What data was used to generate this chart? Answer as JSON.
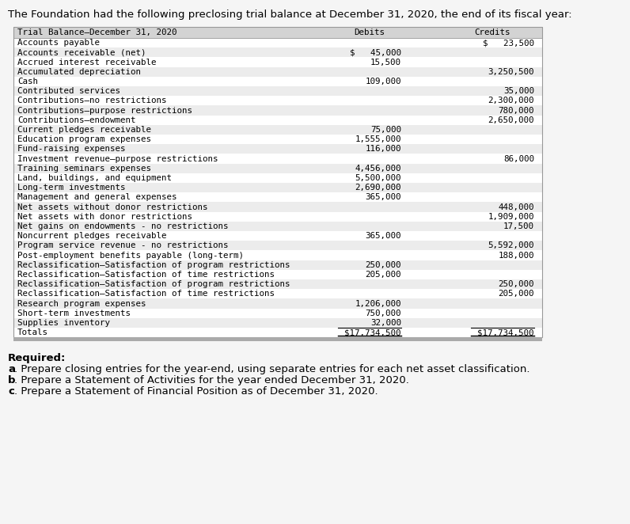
{
  "intro_text": "The Foundation had the following preclosing trial balance at December 31, 2020, the end of its fiscal year:",
  "header_label": "Trial Balance–December 31, 2020",
  "header_debit": "Debits",
  "header_credit": "Credits",
  "rows": [
    {
      "label": "Accounts payable",
      "debit": "",
      "credit": "$   23,500",
      "shaded": false
    },
    {
      "label": "Accounts receivable (net)",
      "debit": "$   45,000",
      "credit": "",
      "shaded": true
    },
    {
      "label": "Accrued interest receivable",
      "debit": "15,500",
      "credit": "",
      "shaded": false
    },
    {
      "label": "Accumulated depreciation",
      "debit": "",
      "credit": "3,250,500",
      "shaded": true
    },
    {
      "label": "Cash",
      "debit": "109,000",
      "credit": "",
      "shaded": false
    },
    {
      "label": "Contributed services",
      "debit": "",
      "credit": "35,000",
      "shaded": true
    },
    {
      "label": "Contributions–no restrictions",
      "debit": "",
      "credit": "2,300,000",
      "shaded": false
    },
    {
      "label": "Contributions–purpose restrictions",
      "debit": "",
      "credit": "780,000",
      "shaded": true
    },
    {
      "label": "Contributions–endowment",
      "debit": "",
      "credit": "2,650,000",
      "shaded": false
    },
    {
      "label": "Current pledges receivable",
      "debit": "75,000",
      "credit": "",
      "shaded": true
    },
    {
      "label": "Education program expenses",
      "debit": "1,555,000",
      "credit": "",
      "shaded": false
    },
    {
      "label": "Fund-raising expenses",
      "debit": "116,000",
      "credit": "",
      "shaded": true
    },
    {
      "label": "Investment revenue–purpose restrictions",
      "debit": "",
      "credit": "86,000",
      "shaded": false
    },
    {
      "label": "Training seminars expenses",
      "debit": "4,456,000",
      "credit": "",
      "shaded": true
    },
    {
      "label": "Land, buildings, and equipment",
      "debit": "5,500,000",
      "credit": "",
      "shaded": false
    },
    {
      "label": "Long-term investments",
      "debit": "2,690,000",
      "credit": "",
      "shaded": true
    },
    {
      "label": "Management and general expenses",
      "debit": "365,000",
      "credit": "",
      "shaded": false
    },
    {
      "label": "Net assets without donor restrictions",
      "debit": "",
      "credit": "448,000",
      "shaded": true
    },
    {
      "label": "Net assets with donor restrictions",
      "debit": "",
      "credit": "1,909,000",
      "shaded": false
    },
    {
      "label": "Net gains on endowments - no restrictions",
      "debit": "",
      "credit": "17,500",
      "shaded": true
    },
    {
      "label": "Noncurrent pledges receivable",
      "debit": "365,000",
      "credit": "",
      "shaded": false
    },
    {
      "label": "Program service revenue - no restrictions",
      "debit": "",
      "credit": "5,592,000",
      "shaded": true
    },
    {
      "label": "Post-employment benefits payable (long-term)",
      "debit": "",
      "credit": "188,000",
      "shaded": false
    },
    {
      "label": "Reclassification–Satisfaction of program restrictions",
      "debit": "250,000",
      "credit": "",
      "shaded": true
    },
    {
      "label": "Reclassification–Satisfaction of time restrictions",
      "debit": "205,000",
      "credit": "",
      "shaded": false
    },
    {
      "label": "Reclassification–Satisfaction of program restrictions",
      "debit": "",
      "credit": "250,000",
      "shaded": true
    },
    {
      "label": "Reclassification–Satisfaction of time restrictions",
      "debit": "",
      "credit": "205,000",
      "shaded": false
    },
    {
      "label": "Research program expenses",
      "debit": "1,206,000",
      "credit": "",
      "shaded": true
    },
    {
      "label": "Short-term investments",
      "debit": "750,000",
      "credit": "",
      "shaded": false
    },
    {
      "label": "Supplies inventory",
      "debit": "32,000",
      "credit": "",
      "shaded": true
    },
    {
      "label": "Totals",
      "debit": "$17,734,500",
      "credit": "$17,734,500",
      "shaded": false,
      "totals_row": true
    }
  ],
  "required_text": "Required:",
  "required_items": [
    [
      "a",
      ". Prepare closing entries for the year-end, using separate entries for each net asset classification."
    ],
    [
      "b",
      ". Prepare a Statement of Activities for the year ended December 31, 2020."
    ],
    [
      "c",
      ". Prepare a Statement of Financial Position as of December 31, 2020."
    ]
  ],
  "header_bg": "#d3d3d3",
  "shade_bg": "#ececec",
  "white_bg": "#ffffff",
  "border_color": "#999999",
  "text_color": "#000000",
  "intro_fontsize": 9.5,
  "table_fontsize": 7.8,
  "required_fontsize": 9.5,
  "page_bg": "#f5f5f5"
}
